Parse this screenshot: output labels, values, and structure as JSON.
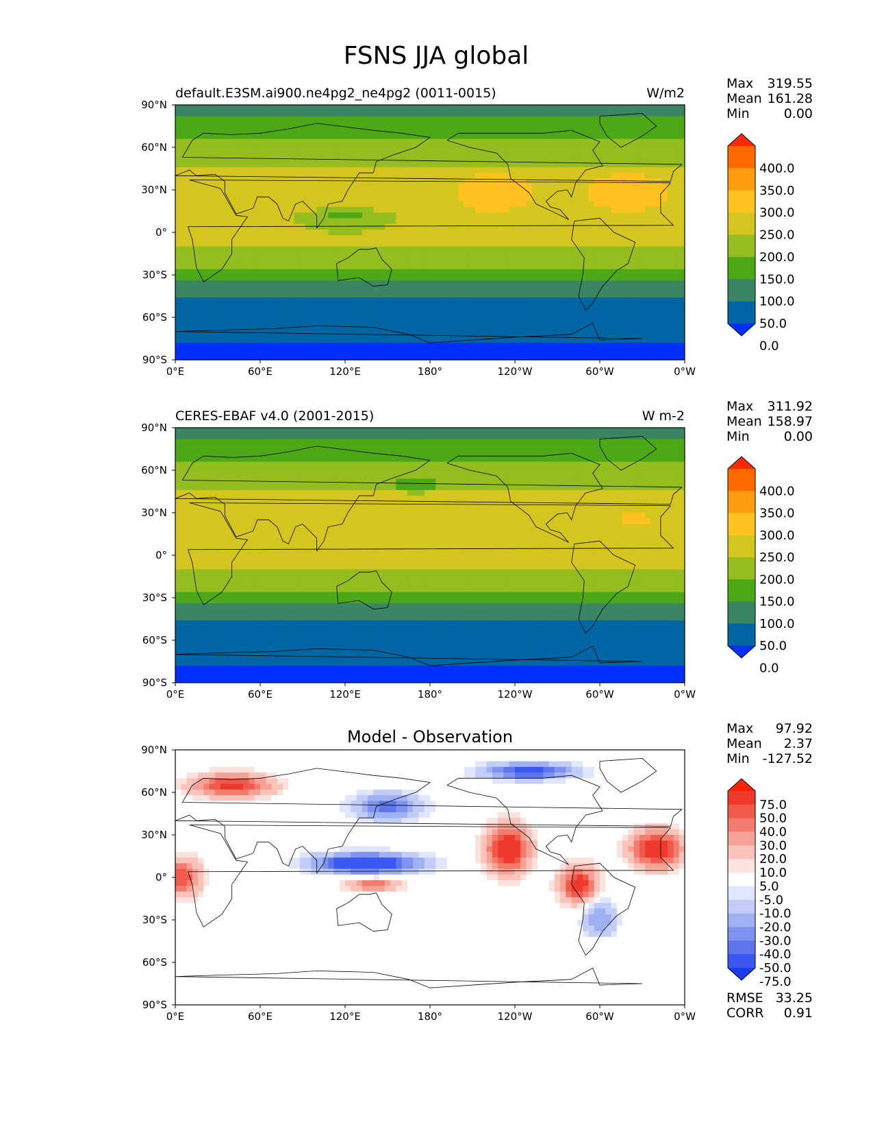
{
  "title": "FSNS JJA global",
  "panels": [
    {
      "id": "test",
      "left_title": "default.E3SM.ai900.ne4pg2_ne4pg2 (0011-0015)",
      "right_title": "W/m2",
      "stats": [
        {
          "label": "Max",
          "value": "319.55"
        },
        {
          "label": "Mean",
          "value": "161.28"
        },
        {
          "label": "Min",
          "value": "0.00"
        }
      ],
      "colorbar": {
        "labels": [
          "400.0",
          "350.0",
          "300.0",
          "250.0",
          "200.0",
          "150.0",
          "100.0",
          "50.0",
          "0.0"
        ],
        "colors": [
          "#ff2a00",
          "#ff6a00",
          "#ff9d0f",
          "#ffc21f",
          "#d4c61f",
          "#94bd1f",
          "#4ca815",
          "#3a8563",
          "#0066a3",
          "#0030ff"
        ]
      }
    },
    {
      "id": "reference",
      "left_title": "CERES-EBAF v4.0 (2001-2015)",
      "right_title": "W m-2",
      "stats": [
        {
          "label": "Max",
          "value": "311.92"
        },
        {
          "label": "Mean",
          "value": "158.97"
        },
        {
          "label": "Min",
          "value": "0.00"
        }
      ],
      "colorbar": {
        "labels": [
          "400.0",
          "350.0",
          "300.0",
          "250.0",
          "200.0",
          "150.0",
          "100.0",
          "50.0",
          "0.0"
        ],
        "colors": [
          "#ff2a00",
          "#ff6a00",
          "#ff9d0f",
          "#ffc21f",
          "#d4c61f",
          "#94bd1f",
          "#4ca815",
          "#3a8563",
          "#0066a3",
          "#0030ff"
        ]
      }
    },
    {
      "id": "difference",
      "center_title": "Model - Observation",
      "stats": [
        {
          "label": "Max",
          "value": "97.92"
        },
        {
          "label": "Mean",
          "value": "2.37"
        },
        {
          "label": "Min",
          "value": "-127.52"
        }
      ],
      "extra_stats": [
        {
          "label": "RMSE",
          "value": "33.25"
        },
        {
          "label": "CORR",
          "value": "0.91"
        }
      ],
      "colorbar": {
        "labels": [
          "75.0",
          "50.0",
          "40.0",
          "30.0",
          "20.0",
          "10.0",
          "5.0",
          "-5.0",
          "-10.0",
          "-20.0",
          "-30.0",
          "-40.0",
          "-50.0",
          "-75.0"
        ],
        "colors": [
          "#ff2200",
          "#f0392d",
          "#f05a4b",
          "#f27d6f",
          "#f6a195",
          "#f9c3ba",
          "#fce2dc",
          "#ffffff",
          "#e0e6fb",
          "#c2cdf7",
          "#a0b1f3",
          "#7e93ef",
          "#5d76ed",
          "#3b58ee",
          "#1c3aee"
        ]
      }
    }
  ],
  "axes": {
    "lon_ticks": [
      "0°E",
      "60°E",
      "120°E",
      "180°",
      "120°W",
      "60°W",
      "0°W"
    ],
    "lat_ticks": [
      "90°N",
      "60°N",
      "30°N",
      "0°",
      "30°S",
      "60°S",
      "90°S"
    ]
  }
}
